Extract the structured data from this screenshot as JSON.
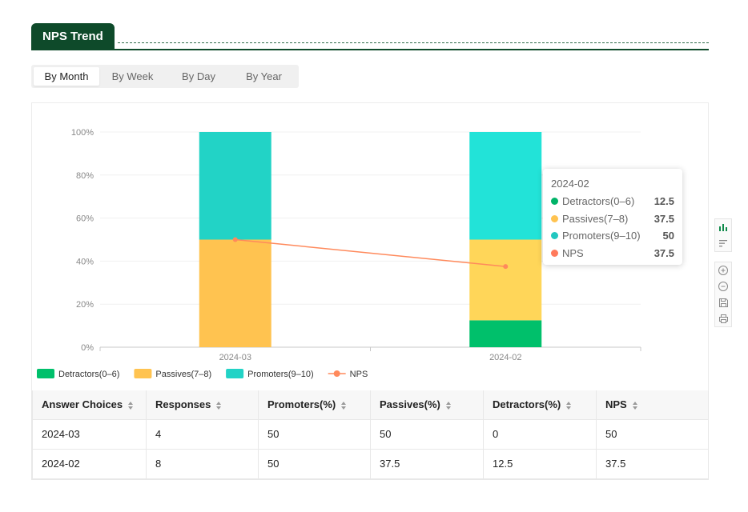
{
  "section": {
    "title": "NPS Trend"
  },
  "tabs": [
    {
      "label": "By Month",
      "active": true
    },
    {
      "label": "By Week",
      "active": false
    },
    {
      "label": "By Day",
      "active": false
    },
    {
      "label": "By Year",
      "active": false
    }
  ],
  "chart_data": {
    "type": "bar",
    "stacked": true,
    "categories": [
      "2024-03",
      "2024-02"
    ],
    "ylim": [
      0,
      100
    ],
    "yticks": [
      "0%",
      "20%",
      "40%",
      "60%",
      "80%",
      "100%"
    ],
    "ytick_values": [
      0,
      20,
      40,
      60,
      80,
      100
    ],
    "series": [
      {
        "name": "Detractors(0–6)",
        "type": "bar",
        "values": [
          0,
          12.5
        ],
        "color": "#00c06b"
      },
      {
        "name": "Passives(7–8)",
        "type": "bar",
        "values": [
          50,
          37.5
        ],
        "color": "#ffc350"
      },
      {
        "name": "Promoters(9–10)",
        "type": "bar",
        "values": [
          50,
          50
        ],
        "color": "#22d3c6"
      },
      {
        "name": "NPS",
        "type": "line",
        "values": [
          50,
          37.5
        ],
        "color": "#ff8a5c"
      }
    ],
    "hover_colors": [
      "#00c06b",
      "#ffd659",
      "#22e3d8"
    ],
    "legend_position": "bottom-left",
    "tooltip": {
      "title": "2024-02",
      "rows": [
        {
          "name": "Detractors(0–6)",
          "value": "12.5",
          "color": "#00b368"
        },
        {
          "name": "Passives(7–8)",
          "value": "37.5",
          "color": "#ffc350"
        },
        {
          "name": "Promoters(9–10)",
          "value": "50",
          "color": "#22c7c0"
        },
        {
          "name": "NPS",
          "value": "37.5",
          "color": "#ff7a5c"
        }
      ]
    }
  },
  "toolbox": [
    "bar-chart-icon",
    "sort-lines-icon",
    "zoom-in-icon",
    "zoom-out-icon",
    "save-icon",
    "print-icon"
  ],
  "table": {
    "headers": [
      "Answer Choices",
      "Responses",
      "Promoters(%)",
      "Passives(%)",
      "Detractors(%)",
      "NPS"
    ],
    "rows": [
      [
        "2024-03",
        "4",
        "50",
        "50",
        "0",
        "50"
      ],
      [
        "2024-02",
        "8",
        "50",
        "37.5",
        "12.5",
        "37.5"
      ]
    ]
  }
}
